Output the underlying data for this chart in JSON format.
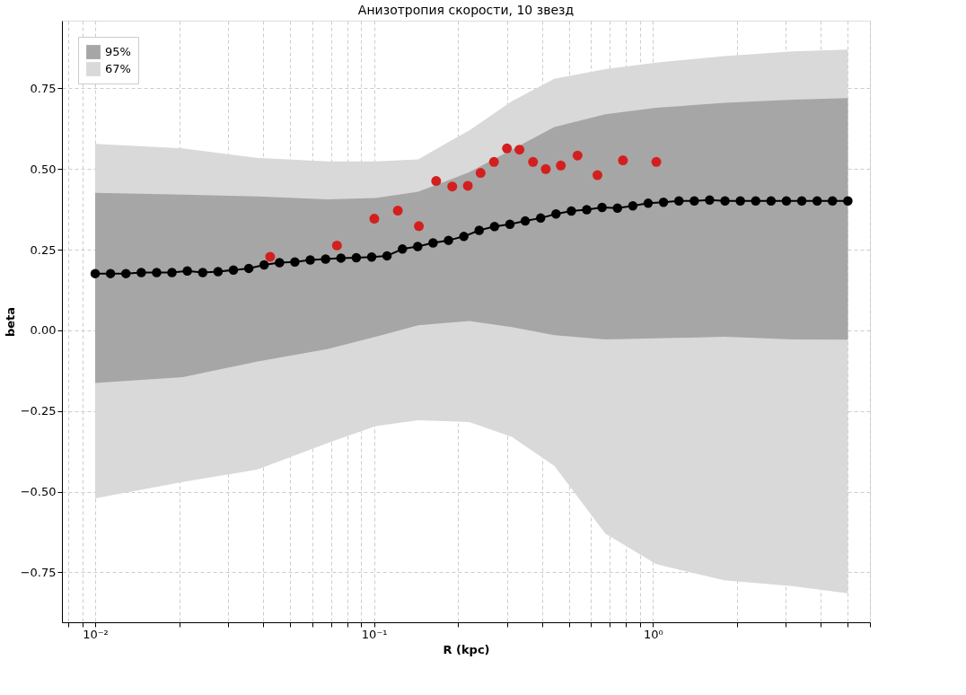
{
  "chart_data": {
    "type": "line",
    "title": "Анизотропия скорости, 10 звезд",
    "xlabel": "R (kpc)",
    "ylabel": "beta",
    "log": "x",
    "grid": true,
    "legend": "top left",
    "xlim": [
      0.0076,
      6.0
    ],
    "ylim": [
      -0.905,
      0.96
    ],
    "xticks": [
      {
        "value": 0.008,
        "label": null
      },
      {
        "value": 0.009,
        "label": null
      },
      {
        "value": 0.01,
        "label": "10⁻²"
      },
      {
        "value": 0.02,
        "label": null
      },
      {
        "value": 0.03,
        "label": null
      },
      {
        "value": 0.04,
        "label": null
      },
      {
        "value": 0.05,
        "label": null
      },
      {
        "value": 0.06,
        "label": null
      },
      {
        "value": 0.07,
        "label": null
      },
      {
        "value": 0.08,
        "label": null
      },
      {
        "value": 0.09,
        "label": null
      },
      {
        "value": 0.1,
        "label": "10⁻¹"
      },
      {
        "value": 0.2,
        "label": null
      },
      {
        "value": 0.3,
        "label": null
      },
      {
        "value": 0.4,
        "label": null
      },
      {
        "value": 0.5,
        "label": null
      },
      {
        "value": 0.6,
        "label": null
      },
      {
        "value": 0.7,
        "label": null
      },
      {
        "value": 0.8,
        "label": null
      },
      {
        "value": 0.9,
        "label": null
      },
      {
        "value": 1,
        "label": "10⁰"
      },
      {
        "value": 2,
        "label": null
      },
      {
        "value": 3,
        "label": null
      },
      {
        "value": 4,
        "label": null
      },
      {
        "value": 5,
        "label": null
      },
      {
        "value": 6,
        "label": null
      }
    ],
    "yticks": [
      {
        "value": -0.75,
        "label": "−0.75"
      },
      {
        "value": -0.5,
        "label": "−0.50"
      },
      {
        "value": -0.25,
        "label": "−0.25"
      },
      {
        "value": 0,
        "label": "0.00"
      },
      {
        "value": 0.25,
        "label": "0.25"
      },
      {
        "value": 0.5,
        "label": "0.50"
      },
      {
        "value": 0.75,
        "label": "0.75"
      }
    ],
    "series": [
      {
        "type": "area",
        "name": "67%",
        "color": "#d9d9d9",
        "x": [
          0.01,
          0.0206,
          0.038,
          0.068,
          0.1014,
          0.144,
          0.2195,
          0.3118,
          0.4429,
          0.675,
          1.028,
          1.804,
          3.162,
          5.0
        ],
        "values": [
          null,
          null,
          null,
          null,
          null,
          null,
          null,
          null,
          null,
          null,
          null,
          null,
          null,
          null
        ],
        "lower": [
          -0.521,
          -0.47,
          -0.432,
          -0.35,
          -0.297,
          -0.279,
          -0.284,
          -0.33,
          -0.42,
          -0.63,
          -0.725,
          -0.775,
          -0.793,
          -0.815
        ],
        "upper": [
          0.578,
          0.564,
          0.535,
          0.524,
          0.524,
          0.53,
          0.62,
          0.71,
          0.78,
          0.81,
          0.83,
          0.85,
          0.865,
          0.87
        ]
      },
      {
        "type": "area",
        "name": "95%",
        "color": "#a6a6a6",
        "x": [
          0.01,
          0.0206,
          0.038,
          0.068,
          0.1014,
          0.144,
          0.2195,
          0.3118,
          0.4429,
          0.675,
          1.028,
          1.804,
          3.162,
          5.0
        ],
        "values": [
          null,
          null,
          null,
          null,
          null,
          null,
          null,
          null,
          null,
          null,
          null,
          null,
          null,
          null
        ],
        "lower": [
          -0.163,
          -0.145,
          -0.097,
          -0.058,
          -0.02,
          0.016,
          0.029,
          0.01,
          -0.015,
          -0.028,
          -0.025,
          -0.02,
          -0.028,
          -0.029
        ],
        "upper": [
          0.426,
          0.421,
          0.415,
          0.406,
          0.41,
          0.43,
          0.49,
          0.56,
          0.63,
          0.67,
          0.69,
          0.705,
          0.715,
          0.72
        ]
      },
      {
        "color": "#000000",
        "marker": "circle",
        "line_style": "solid",
        "x": [
          0.01,
          0.01135,
          0.01289,
          0.01463,
          0.01661,
          0.01885,
          0.0214,
          0.0243,
          0.02758,
          0.03131,
          0.03555,
          0.04035,
          0.04581,
          0.052,
          0.05904,
          0.06702,
          0.07608,
          0.08637,
          0.09805,
          0.1113,
          0.1264,
          0.1434,
          0.1628,
          0.1849,
          0.2099,
          0.2382,
          0.2704,
          0.307,
          0.3485,
          0.3957,
          0.4492,
          0.5099,
          0.5789,
          0.6571,
          0.746,
          0.8469,
          0.9614,
          1.091,
          1.239,
          1.407,
          1.597,
          1.813,
          2.058,
          2.336,
          2.652,
          3.01,
          3.418,
          3.88,
          4.404,
          5.0
        ],
        "values": [
          0.176,
          0.176,
          0.176,
          0.179,
          0.179,
          0.179,
          0.184,
          0.179,
          0.182,
          0.187,
          0.192,
          0.203,
          0.21,
          0.212,
          0.218,
          0.221,
          0.224,
          0.225,
          0.227,
          0.231,
          0.252,
          0.26,
          0.271,
          0.279,
          0.291,
          0.31,
          0.322,
          0.329,
          0.339,
          0.348,
          0.361,
          0.37,
          0.374,
          0.381,
          0.379,
          0.386,
          0.394,
          0.397,
          0.401,
          0.401,
          0.404,
          0.401,
          0.401,
          0.401,
          0.401,
          0.401,
          0.401,
          0.401,
          0.401,
          0.401
        ]
      },
      {
        "type": "scatter",
        "color": "#d41f1f",
        "x": [
          0.0424,
          0.0736,
          0.1002,
          0.1217,
          0.1448,
          0.167,
          0.1907,
          0.2169,
          0.241,
          0.2691,
          0.2996,
          0.3322,
          0.3716,
          0.4128,
          0.4675,
          0.5366,
          0.6324,
          0.7807,
          1.0285
        ],
        "values": [
          0.228,
          0.263,
          0.346,
          0.371,
          0.323,
          0.463,
          0.446,
          0.448,
          0.488,
          0.522,
          0.564,
          0.56,
          0.522,
          0.5,
          0.511,
          0.542,
          0.481,
          0.527,
          0.522
        ]
      }
    ]
  }
}
